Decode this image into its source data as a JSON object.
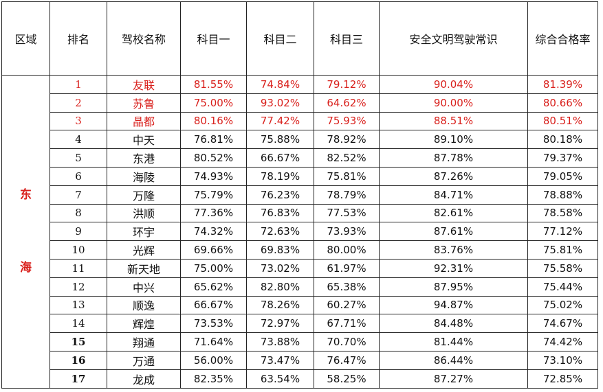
{
  "headers": [
    "区域",
    "排名",
    "驾校名称",
    "科目一",
    "科目二",
    "科目三",
    "安全文明驾驶常识",
    "综合合格率"
  ],
  "region_chars": [
    "东",
    "海"
  ],
  "rows": [
    {
      "rank": "1",
      "name": "友联",
      "k1": "81.55%",
      "k2": "74.84%",
      "k3": "79.12%",
      "safety": "90.04%",
      "overall": "81.39%"
    },
    {
      "rank": "2",
      "name": "苏鲁",
      "k1": "75.00%",
      "k2": "93.02%",
      "k3": "64.62%",
      "safety": "90.00%",
      "overall": "80.66%"
    },
    {
      "rank": "3",
      "name": "晶都",
      "k1": "80.16%",
      "k2": "77.42%",
      "k3": "75.93%",
      "safety": "88.51%",
      "overall": "80.51%"
    },
    {
      "rank": "4",
      "name": "中天",
      "k1": "76.81%",
      "k2": "75.88%",
      "k3": "78.92%",
      "safety": "89.10%",
      "overall": "80.18%"
    },
    {
      "rank": "5",
      "name": "东港",
      "k1": "80.52%",
      "k2": "66.67%",
      "k3": "82.52%",
      "safety": "87.78%",
      "overall": "79.37%"
    },
    {
      "rank": "6",
      "name": "海陵",
      "k1": "74.93%",
      "k2": "78.19%",
      "k3": "75.81%",
      "safety": "87.26%",
      "overall": "79.05%"
    },
    {
      "rank": "7",
      "name": "万隆",
      "k1": "75.79%",
      "k2": "76.23%",
      "k3": "78.79%",
      "safety": "84.71%",
      "overall": "78.88%"
    },
    {
      "rank": "8",
      "name": "洪顺",
      "k1": "77.36%",
      "k2": "76.83%",
      "k3": "77.53%",
      "safety": "82.61%",
      "overall": "78.58%"
    },
    {
      "rank": "9",
      "name": "环宇",
      "k1": "74.32%",
      "k2": "72.63%",
      "k3": "73.93%",
      "safety": "87.61%",
      "overall": "77.12%"
    },
    {
      "rank": "10",
      "name": "光辉",
      "k1": "69.66%",
      "k2": "69.83%",
      "k3": "80.00%",
      "safety": "83.76%",
      "overall": "75.81%"
    },
    {
      "rank": "11",
      "name": "新天地",
      "k1": "75.00%",
      "k2": "73.02%",
      "k3": "61.97%",
      "safety": "92.31%",
      "overall": "75.58%"
    },
    {
      "rank": "12",
      "name": "中兴",
      "k1": "65.62%",
      "k2": "82.80%",
      "k3": "65.38%",
      "safety": "87.95%",
      "overall": "75.44%"
    },
    {
      "rank": "13",
      "name": "顺逸",
      "k1": "66.67%",
      "k2": "78.26%",
      "k3": "60.27%",
      "safety": "94.87%",
      "overall": "75.02%"
    },
    {
      "rank": "14",
      "name": "辉煌",
      "k1": "73.53%",
      "k2": "72.97%",
      "k3": "67.71%",
      "safety": "84.48%",
      "overall": "74.67%"
    },
    {
      "rank": "15",
      "name": "翔通",
      "k1": "71.64%",
      "k2": "73.88%",
      "k3": "70.70%",
      "safety": "81.44%",
      "overall": "74.42%"
    },
    {
      "rank": "16",
      "name": "万通",
      "k1": "56.00%",
      "k2": "73.47%",
      "k3": "76.47%",
      "safety": "86.44%",
      "overall": "73.10%"
    },
    {
      "rank": "17",
      "name": "龙成",
      "k1": "82.35%",
      "k2": "63.54%",
      "k3": "58.25%",
      "safety": "87.27%",
      "overall": "72.85%"
    }
  ],
  "highlight_color": "#d9201c"
}
